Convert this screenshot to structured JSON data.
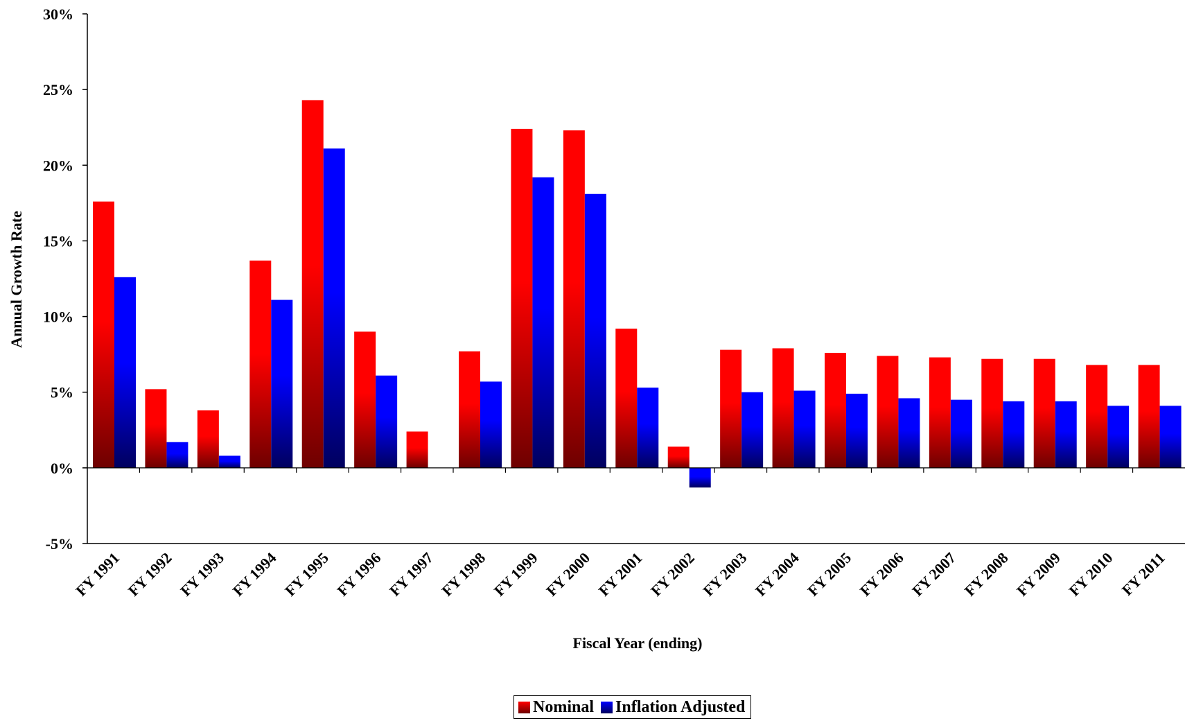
{
  "chart_data": {
    "type": "bar",
    "title": "",
    "xlabel": "Fiscal Year (ending)",
    "ylabel": "Annual Growth Rate",
    "ylim": [
      -5,
      30
    ],
    "yticks": [
      -5,
      0,
      5,
      10,
      15,
      20,
      25,
      30
    ],
    "ytick_labels": [
      "-5%",
      "0%",
      "5%",
      "10%",
      "15%",
      "20%",
      "25%",
      "30%"
    ],
    "grid": false,
    "legend_position": "bottom-center",
    "categories": [
      "FY 1991",
      "FY 1992",
      "FY 1993",
      "FY 1994",
      "FY 1995",
      "FY 1996",
      "FY 1997",
      "FY 1998",
      "FY 1999",
      "FY 2000",
      "FY 2001",
      "FY 2002",
      "FY 2003",
      "FY 2004",
      "FY 2005",
      "FY 2006",
      "FY 2007",
      "FY 2008",
      "FY 2009",
      "FY 2010",
      "FY 2011"
    ],
    "series": [
      {
        "name": "Nominal",
        "color": "#ff0000",
        "color_dark": "#6e0000",
        "values": [
          17.6,
          5.2,
          3.8,
          13.7,
          24.3,
          9.0,
          2.4,
          7.7,
          22.4,
          22.3,
          9.2,
          1.4,
          7.8,
          7.9,
          7.6,
          7.4,
          7.3,
          7.2,
          7.2,
          6.8,
          6.8
        ]
      },
      {
        "name": "Inflation Adjusted",
        "color": "#0000ff",
        "color_dark": "#00005e",
        "values": [
          12.6,
          1.7,
          0.8,
          11.1,
          21.1,
          6.1,
          0.0,
          5.7,
          19.2,
          18.1,
          5.3,
          -1.3,
          5.0,
          5.1,
          4.9,
          4.6,
          4.5,
          4.4,
          4.4,
          4.1,
          4.1
        ]
      }
    ]
  }
}
